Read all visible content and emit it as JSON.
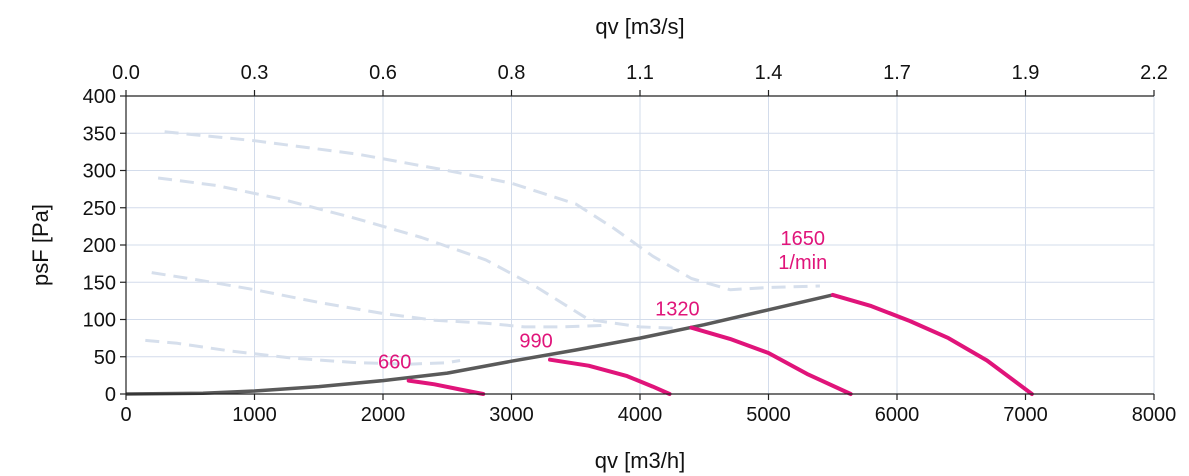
{
  "chart_data": {
    "type": "line",
    "x_axis": {
      "label": "qv [m3/h]",
      "ticks": [
        0,
        1000,
        2000,
        3000,
        4000,
        5000,
        6000,
        7000,
        8000
      ],
      "tick_labels": [
        "0",
        "1000",
        "2000",
        "3000",
        "4000",
        "5000",
        "6000",
        "7000",
        "8000"
      ],
      "range": [
        0,
        8000
      ]
    },
    "x2_axis": {
      "label": "qv [m3/s]",
      "tick_labels": [
        "0.0",
        "0.3",
        "0.6",
        "0.8",
        "1.1",
        "1.4",
        "1.7",
        "1.9",
        "2.2"
      ]
    },
    "y_axis": {
      "label": "psF [Pa]",
      "ticks": [
        0,
        50,
        100,
        150,
        200,
        250,
        300,
        350,
        400
      ],
      "tick_labels": [
        "0",
        "50",
        "100",
        "150",
        "200",
        "250",
        "300",
        "350",
        "400"
      ],
      "range": [
        0,
        400
      ]
    },
    "grid": true,
    "colors": {
      "speed_curve": "#e0147a",
      "system_curve": "#5a5a5a",
      "dashed_curve": "#d6dfec"
    },
    "dashed_curves": [
      {
        "x": [
          150,
          400,
          800,
          1300,
          1800,
          2200,
          2500,
          2600
        ],
        "y": [
          72,
          68,
          58,
          48,
          42,
          40,
          42,
          45
        ]
      },
      {
        "x": [
          200,
          600,
          1000,
          1500,
          2000,
          2400,
          2800,
          3100,
          3400,
          3700
        ],
        "y": [
          163,
          152,
          140,
          123,
          108,
          99,
          95,
          90,
          90,
          92
        ]
      },
      {
        "x": [
          250,
          700,
          1200,
          1800,
          2300,
          2800,
          3200,
          3600,
          4000,
          4300
        ],
        "y": [
          290,
          280,
          262,
          235,
          210,
          180,
          143,
          100,
          90,
          88
        ]
      },
      {
        "x": [
          300,
          1000,
          1800,
          2500,
          3000,
          3500,
          3800,
          4100,
          4400,
          4700,
          5000,
          5400
        ],
        "y": [
          352,
          340,
          322,
          300,
          283,
          255,
          222,
          185,
          155,
          140,
          143,
          145
        ]
      }
    ],
    "system_curve": {
      "x": [
        0,
        600,
        1000,
        1500,
        2000,
        2500,
        3000,
        3500,
        4000,
        4500,
        5000,
        5500
      ],
      "y": [
        0,
        1,
        4,
        10,
        18,
        28,
        44,
        59,
        75,
        93,
        113,
        133
      ]
    },
    "speed_curves": [
      {
        "label": "660",
        "x": [
          2200,
          2400,
          2600,
          2780
        ],
        "y": [
          18,
          13,
          6,
          0
        ]
      },
      {
        "label": "990",
        "x": [
          3300,
          3600,
          3900,
          4100,
          4230
        ],
        "y": [
          46,
          38,
          24,
          10,
          0
        ]
      },
      {
        "label": "1320",
        "x": [
          4400,
          4700,
          5000,
          5300,
          5640
        ],
        "y": [
          89,
          74,
          55,
          27,
          0
        ]
      },
      {
        "label": "1650",
        "label2": "1/min",
        "x": [
          5500,
          5800,
          6100,
          6400,
          6700,
          7050
        ],
        "y": [
          133,
          118,
          98,
          75,
          45,
          0
        ]
      }
    ]
  }
}
